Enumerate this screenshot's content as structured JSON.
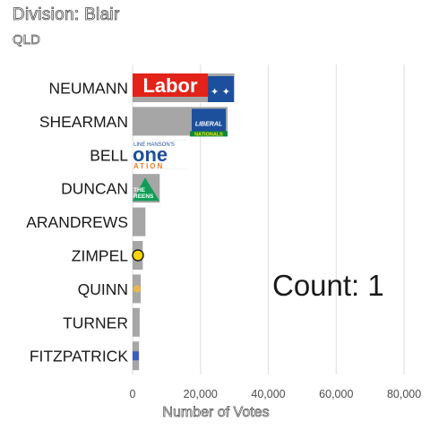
{
  "chart_data": {
    "type": "bar",
    "orientation": "horizontal",
    "title": "Division: Blair",
    "subtitle": "QLD",
    "xlabel": "Number of Votes",
    "ylabel": "",
    "xlim": [
      0,
      85000
    ],
    "x_ticks": [
      0,
      20000,
      40000,
      60000,
      80000
    ],
    "x_tick_labels": [
      "0",
      "20,000",
      "40,000",
      "60,000",
      "80,000"
    ],
    "grid": true,
    "categories": [
      "NEUMANN",
      "SHEARMAN",
      "BELL",
      "DUNCAN",
      "ARANDREWS",
      "ZIMPEL",
      "QUINN",
      "TURNER",
      "FITZPATRICK"
    ],
    "values": [
      30000,
      28000,
      16000,
      8000,
      3800,
      3000,
      2400,
      2100,
      1900
    ],
    "party_logos": [
      "Labor",
      "Liberal Nationals",
      "One Nation",
      "The Greens",
      "",
      "",
      "",
      "",
      ""
    ],
    "bar_color": "#a6a6a6",
    "annotation": "Count:  1"
  }
}
